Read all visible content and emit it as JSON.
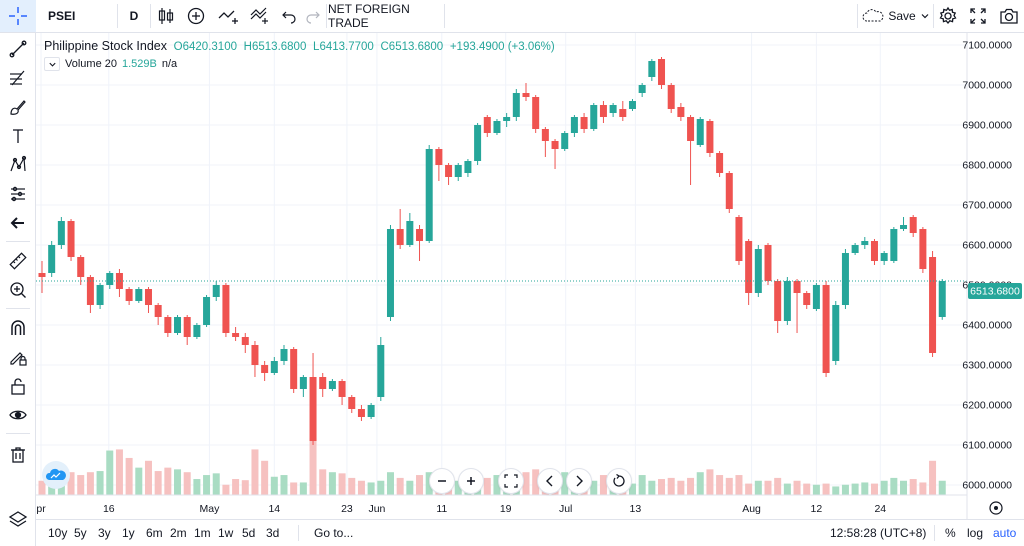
{
  "toolbar": {
    "symbol": "PSEI",
    "interval": "D",
    "indicator_name": "NET FOREIGN TRADE",
    "save_label": "Save"
  },
  "legend": {
    "title": "Philippine Stock Index",
    "open_label": "O",
    "open_value": "6420.3100",
    "high_label": "H",
    "high_value": "6513.6800",
    "low_label": "L",
    "low_value": "6413.7700",
    "close_label": "C",
    "close_value": "6513.6800",
    "change": "+193.4900 (+3.06%)"
  },
  "volume_legend": {
    "label": "Volume",
    "period": "20",
    "value": "1.529B",
    "value2": "n/a"
  },
  "price_label": "6513.6800",
  "bottom": {
    "ranges": [
      "10y",
      "5y",
      "3y",
      "1y",
      "6m",
      "2m",
      "1m",
      "1w",
      "5d",
      "3d"
    ],
    "goto": "Go to...",
    "time": "12:58:28 (UTC+8)",
    "percent": "%",
    "log": "log",
    "auto": "auto"
  },
  "colors": {
    "up": "#26a69a",
    "down": "#ef5350",
    "up_volume": "#a9dcc3",
    "down_volume": "#f6c1c0",
    "price_line": "#26a69a",
    "accent": "#2962ff"
  },
  "icons": {
    "crosshair": "crosshair-icon",
    "trendline": "trendline-icon",
    "fib": "fib-icon",
    "brush": "brush-icon",
    "text": "text-icon",
    "pattern": "pattern-icon",
    "prediction": "prediction-icon",
    "back": "arrow-left-icon",
    "ruler": "ruler-icon",
    "zoom": "zoom-in-icon",
    "magnet": "magnet-icon",
    "lock_draw": "pencil-lock-icon",
    "lock": "lock-icon",
    "eye": "eye-icon",
    "trash": "trash-icon",
    "layers": "layers-icon"
  },
  "chart_data": {
    "type": "candlestick",
    "y_ticks": [
      "7100.0000",
      "7000.0000",
      "6900.0000",
      "6800.0000",
      "6700.0000",
      "6600.0000",
      "6500.0000",
      "6400.0000",
      "6300.0000",
      "6200.0000",
      "6100.0000",
      "6000.0000"
    ],
    "y_range": [
      5975,
      7130
    ],
    "x_ticks": [
      {
        "label": "pr",
        "index": -0.1
      },
      {
        "label": "16",
        "index": 6.9
      },
      {
        "label": "May",
        "index": 17.3
      },
      {
        "label": "14",
        "index": 24.0
      },
      {
        "label": "23",
        "index": 31.5
      },
      {
        "label": "Jun",
        "index": 34.6
      },
      {
        "label": "11",
        "index": 41.3
      },
      {
        "label": "19",
        "index": 47.9
      },
      {
        "label": "Jul",
        "index": 54.1
      },
      {
        "label": "13",
        "index": 61.3
      },
      {
        "label": "Aug",
        "index": 73.3
      },
      {
        "label": "12",
        "index": 80.0
      },
      {
        "label": "24",
        "index": 86.6
      }
    ],
    "candles": [
      [
        6530,
        6520,
        6560,
        6480
      ],
      [
        6530,
        6600,
        6610,
        6520
      ],
      [
        6600,
        6660,
        6670,
        6590
      ],
      [
        6660,
        6570,
        6665,
        6560
      ],
      [
        6570,
        6520,
        6575,
        6500
      ],
      [
        6520,
        6450,
        6525,
        6430
      ],
      [
        6450,
        6500,
        6505,
        6440
      ],
      [
        6500,
        6530,
        6535,
        6490
      ],
      [
        6530,
        6490,
        6540,
        6470
      ],
      [
        6490,
        6460,
        6495,
        6450
      ],
      [
        6460,
        6490,
        6495,
        6455
      ],
      [
        6490,
        6450,
        6495,
        6430
      ],
      [
        6450,
        6420,
        6455,
        6400
      ],
      [
        6420,
        6380,
        6425,
        6370
      ],
      [
        6380,
        6420,
        6425,
        6375
      ],
      [
        6420,
        6370,
        6425,
        6350
      ],
      [
        6370,
        6400,
        6405,
        6365
      ],
      [
        6400,
        6470,
        6475,
        6395
      ],
      [
        6470,
        6500,
        6510,
        6460
      ],
      [
        6500,
        6380,
        6505,
        6370
      ],
      [
        6380,
        6370,
        6395,
        6360
      ],
      [
        6370,
        6350,
        6380,
        6330
      ],
      [
        6350,
        6300,
        6360,
        6270
      ],
      [
        6300,
        6280,
        6310,
        6260
      ],
      [
        6280,
        6310,
        6320,
        6275
      ],
      [
        6310,
        6340,
        6350,
        6300
      ],
      [
        6340,
        6240,
        6345,
        6230
      ],
      [
        6240,
        6270,
        6275,
        6220
      ],
      [
        6270,
        6110,
        6330,
        6100
      ],
      [
        6270,
        6240,
        6280,
        6220
      ],
      [
        6240,
        6260,
        6265,
        6235
      ],
      [
        6260,
        6220,
        6265,
        6200
      ],
      [
        6220,
        6190,
        6225,
        6180
      ],
      [
        6190,
        6170,
        6200,
        6160
      ],
      [
        6170,
        6200,
        6205,
        6165
      ],
      [
        6220,
        6350,
        6370,
        6210
      ],
      [
        6420,
        6640,
        6650,
        6410
      ],
      [
        6640,
        6600,
        6690,
        6590
      ],
      [
        6600,
        6660,
        6680,
        6595
      ],
      [
        6640,
        6610,
        6650,
        6560
      ],
      [
        6610,
        6840,
        6850,
        6605
      ],
      [
        6840,
        6800,
        6845,
        6760
      ],
      [
        6800,
        6770,
        6805,
        6750
      ],
      [
        6770,
        6800,
        6805,
        6760
      ],
      [
        6780,
        6810,
        6815,
        6770
      ],
      [
        6810,
        6900,
        6905,
        6800
      ],
      [
        6920,
        6880,
        6925,
        6870
      ],
      [
        6880,
        6910,
        6915,
        6875
      ],
      [
        6910,
        6920,
        6930,
        6895
      ],
      [
        6920,
        6980,
        6990,
        6910
      ],
      [
        6980,
        6970,
        7005,
        6960
      ],
      [
        6970,
        6890,
        6975,
        6880
      ],
      [
        6890,
        6860,
        6895,
        6820
      ],
      [
        6860,
        6840,
        6865,
        6790
      ],
      [
        6840,
        6880,
        6885,
        6835
      ],
      [
        6880,
        6920,
        6925,
        6870
      ],
      [
        6920,
        6890,
        6930,
        6880
      ],
      [
        6890,
        6950,
        6955,
        6885
      ],
      [
        6950,
        6920,
        6960,
        6905
      ],
      [
        6930,
        6950,
        6955,
        6920
      ],
      [
        6940,
        6920,
        6960,
        6910
      ],
      [
        6940,
        6960,
        6965,
        6935
      ],
      [
        6980,
        7000,
        7005,
        6970
      ],
      [
        7020,
        7060,
        7065,
        7010
      ],
      [
        7065,
        7000,
        7070,
        6990
      ],
      [
        7000,
        6940,
        7005,
        6930
      ],
      [
        6945,
        6920,
        6955,
        6910
      ],
      [
        6920,
        6860,
        6925,
        6750
      ],
      [
        6850,
        6915,
        6920,
        6845
      ],
      [
        6910,
        6830,
        6915,
        6820
      ],
      [
        6830,
        6780,
        6835,
        6770
      ],
      [
        6780,
        6690,
        6785,
        6680
      ],
      [
        6670,
        6560,
        6675,
        6550
      ],
      [
        6610,
        6480,
        6615,
        6450
      ],
      [
        6480,
        6590,
        6600,
        6470
      ],
      [
        6600,
        6510,
        6605,
        6500
      ],
      [
        6510,
        6410,
        6515,
        6380
      ],
      [
        6410,
        6510,
        6520,
        6400
      ],
      [
        6510,
        6480,
        6515,
        6380
      ],
      [
        6480,
        6450,
        6485,
        6440
      ],
      [
        6440,
        6500,
        6505,
        6435
      ],
      [
        6500,
        6280,
        6510,
        6270
      ],
      [
        6310,
        6450,
        6460,
        6300
      ],
      [
        6450,
        6580,
        6590,
        6440
      ],
      [
        6580,
        6600,
        6605,
        6575
      ],
      [
        6600,
        6610,
        6620,
        6590
      ],
      [
        6610,
        6560,
        6615,
        6550
      ],
      [
        6560,
        6580,
        6585,
        6550
      ],
      [
        6560,
        6640,
        6645,
        6555
      ],
      [
        6640,
        6650,
        6670,
        6635
      ],
      [
        6670,
        6630,
        6675,
        6620
      ],
      [
        6640,
        6540,
        6645,
        6530
      ],
      [
        6570,
        6330,
        6585,
        6320
      ],
      [
        6420,
        6510,
        6515,
        6413
      ]
    ],
    "volumes": [
      0.25,
      0.35,
      0.45,
      0.4,
      0.35,
      0.4,
      0.42,
      0.78,
      0.8,
      0.65,
      0.48,
      0.6,
      0.42,
      0.48,
      0.45,
      0.4,
      0.28,
      0.35,
      0.38,
      0.18,
      0.28,
      0.26,
      0.8,
      0.6,
      0.32,
      0.35,
      0.22,
      0.22,
      1.0,
      0.45,
      0.4,
      0.38,
      0.3,
      0.25,
      0.22,
      0.25,
      0.4,
      0.3,
      0.25,
      0.35,
      0.4,
      0.35,
      0.35,
      0.25,
      0.2,
      0.2,
      0.3,
      0.35,
      0.4,
      0.35,
      0.4,
      0.45,
      0.4,
      0.42,
      0.4,
      0.3,
      0.2,
      0.25,
      0.35,
      0.4,
      0.3,
      0.2,
      0.35,
      0.25,
      0.28,
      0.3,
      0.25,
      0.3,
      0.4,
      0.45,
      0.35,
      0.3,
      0.35,
      0.2,
      0.25,
      0.25,
      0.3,
      0.2,
      0.25,
      0.2,
      0.18,
      0.2,
      0.15,
      0.18,
      0.2,
      0.22,
      0.2,
      0.25,
      0.3,
      0.25,
      0.28,
      0.22,
      0.6,
      0.25
    ]
  }
}
